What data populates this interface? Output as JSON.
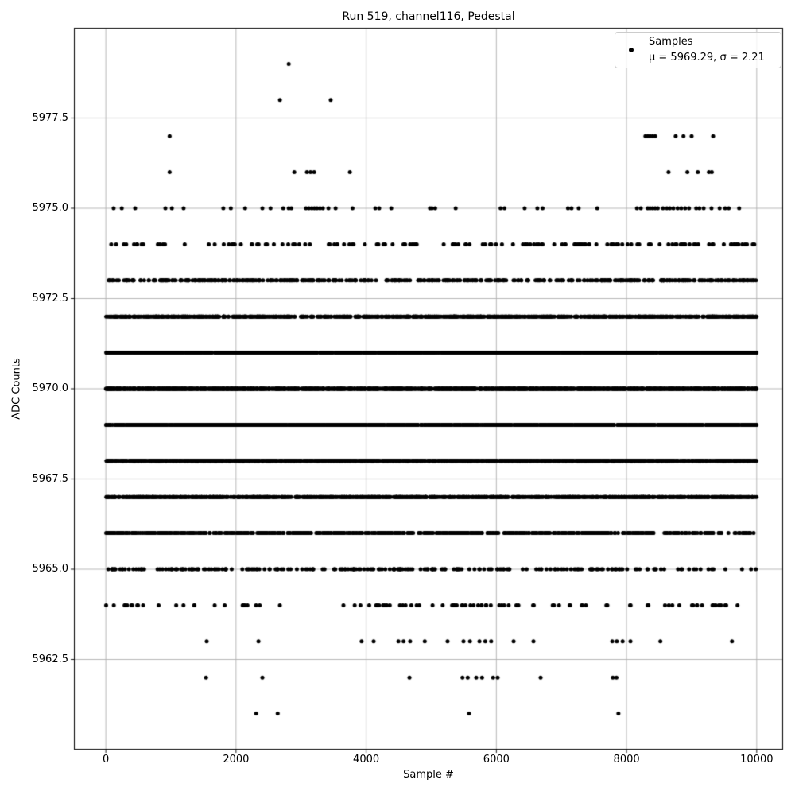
{
  "chart_data": {
    "type": "scatter",
    "title": "Run 519, channel116, Pedestal",
    "xlabel": "Sample #",
    "ylabel": "ADC Counts",
    "xlim": [
      -490,
      10405
    ],
    "ylim": [
      5960,
      5980
    ],
    "xticks": [
      {
        "value": 0,
        "label": "0"
      },
      {
        "value": 2000,
        "label": "2000"
      },
      {
        "value": 4000,
        "label": "4000"
      },
      {
        "value": 6000,
        "label": "6000"
      },
      {
        "value": 8000,
        "label": "8000"
      },
      {
        "value": 10000,
        "label": "10000"
      }
    ],
    "yticks": [
      {
        "value": 5977.5,
        "label": "5977.5"
      },
      {
        "value": 5975.0,
        "label": "5975.0"
      },
      {
        "value": 5972.5,
        "label": "5972.5"
      },
      {
        "value": 5970.0,
        "label": "5970.0"
      },
      {
        "value": 5967.5,
        "label": "5967.5"
      },
      {
        "value": 5965.0,
        "label": "5965.0"
      },
      {
        "value": 5962.5,
        "label": "5962.5"
      }
    ],
    "grid": true,
    "grid_color": "#b0b0b0",
    "frame_color": "#000000",
    "marker_color": "#000000",
    "marker_diameter_px": 5,
    "legend": {
      "label": "Samples",
      "stats": "μ = 5969.29, σ = 2.21",
      "position": "upper right"
    },
    "stats": {
      "mu": 5969.29,
      "sigma": 2.21
    },
    "x_range_of_samples": [
      0,
      9999
    ],
    "levels": [
      {
        "adc": 5979,
        "x": [
          2810
        ]
      },
      {
        "adc": 5978,
        "x": [
          2675,
          3455
        ]
      },
      {
        "adc": 5977,
        "x": [
          980,
          8290,
          8325,
          8360,
          8400,
          8440,
          8755,
          8875,
          9000,
          9330
        ]
      },
      {
        "adc": 5976,
        "x": [
          980,
          2895,
          3090,
          3145,
          3200,
          3750,
          8645,
          8935,
          9095,
          9265,
          9310
        ]
      },
      {
        "adc": 5975,
        "x": [
          120,
          245,
          450,
          915,
          1015,
          1195,
          1805,
          1920,
          2140,
          2405,
          2530,
          2725,
          2810,
          2850,
          3075,
          3120,
          3165,
          3205,
          3245,
          3290,
          3335,
          3420,
          3530,
          3790,
          4140,
          4200,
          4385,
          4980,
          5010,
          5060,
          5375,
          6065,
          6125,
          6435,
          6630,
          6710,
          7100,
          7155,
          7265,
          7550,
          8160,
          8220,
          8325,
          8360,
          8400,
          8440,
          8480,
          8560,
          8620,
          8665,
          8720,
          8785,
          8840,
          8900,
          8960,
          9070,
          9120,
          9185,
          9305,
          9430,
          9515,
          9570,
          9730
        ]
      },
      {
        "adc": 5974,
        "count": 152,
        "seed": 74,
        "zones": [
          [
            0,
            6400,
            1.0
          ],
          [
            6400,
            9999,
            1.25
          ]
        ]
      },
      {
        "adc": 5973,
        "count": 460,
        "seed": 73,
        "zones": [
          [
            0,
            8000,
            1.0
          ],
          [
            8000,
            9999,
            1.3
          ]
        ]
      },
      {
        "adc": 5972,
        "count": 850,
        "seed": 72
      },
      {
        "adc": 5971,
        "count": 1400,
        "seed": 71
      },
      {
        "adc": 5970,
        "count": 1900,
        "seed": 70
      },
      {
        "adc": 5969,
        "count": 1350,
        "seed": 69
      },
      {
        "adc": 5968,
        "count": 1800,
        "seed": 68
      },
      {
        "adc": 5967,
        "count": 950,
        "seed": 67
      },
      {
        "adc": 5966,
        "count": 640,
        "seed": 66,
        "zones": [
          [
            0,
            8400,
            1.0
          ],
          [
            8400,
            9999,
            0.5
          ]
        ]
      },
      {
        "adc": 5965,
        "count": 240,
        "seed": 65,
        "zones": [
          [
            0,
            8600,
            1.0
          ],
          [
            8600,
            9999,
            0.35
          ]
        ]
      },
      {
        "adc": 5964,
        "count": 100,
        "seed": 64,
        "zones": [
          [
            0,
            2450,
            1.0
          ],
          [
            2450,
            3650,
            0.15
          ],
          [
            3650,
            9999,
            1.0
          ]
        ]
      },
      {
        "adc": 5963,
        "x": [
          1550,
          2345,
          3930,
          4115,
          4495,
          4575,
          4675,
          4900,
          5250,
          5495,
          5595,
          5740,
          5830,
          5920,
          6265,
          6570,
          7780,
          7850,
          7940,
          8060,
          8520,
          9620
        ]
      },
      {
        "adc": 5962,
        "x": [
          1540,
          2405,
          4665,
          5480,
          5560,
          5690,
          5780,
          5950,
          6020,
          6680,
          7790,
          7845
        ]
      },
      {
        "adc": 5961,
        "x": [
          2310,
          2640,
          5580,
          7875
        ]
      }
    ]
  }
}
